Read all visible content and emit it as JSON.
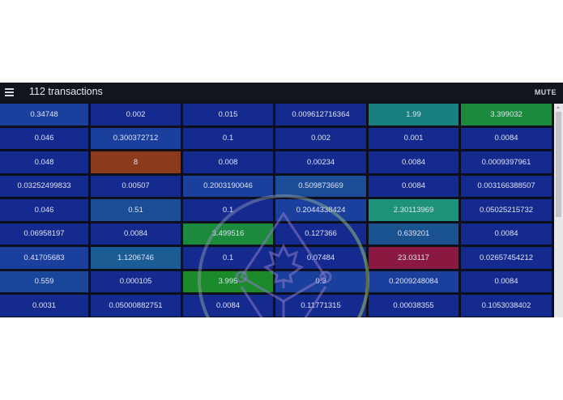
{
  "header": {
    "menu_icon": "hamburger-menu-icon",
    "title": "112 transactions",
    "mute_label": "MUTE"
  },
  "colors": {
    "default_cell": "#152a8e",
    "light_blue": "#1a4a9a",
    "teal": "#17807e",
    "teal_green": "#1e9278",
    "green": "#1b8a3c",
    "orange": "#8c3a1c",
    "crimson": "#8a1840",
    "mid_blue": "#1b5c95"
  },
  "grid": {
    "rows": [
      [
        {
          "v": "0.34748",
          "c": "#1a3f9c"
        },
        {
          "v": "0.002",
          "c": "#152a8e"
        },
        {
          "v": "0.015",
          "c": "#152a8e"
        },
        {
          "v": "0.009612716364",
          "c": "#152a8e"
        },
        {
          "v": "1.99",
          "c": "#17807e"
        },
        {
          "v": "3.399032",
          "c": "#1b8a3c"
        }
      ],
      [
        {
          "v": "0.046",
          "c": "#152a8e"
        },
        {
          "v": "0.300372712",
          "c": "#1a3f9c"
        },
        {
          "v": "0.1",
          "c": "#152a8e"
        },
        {
          "v": "0.002",
          "c": "#152a8e"
        },
        {
          "v": "0.001",
          "c": "#152a8e"
        },
        {
          "v": "0.0084",
          "c": "#152a8e"
        }
      ],
      [
        {
          "v": "0.048",
          "c": "#152a8e"
        },
        {
          "v": "8",
          "c": "#8c3a1c"
        },
        {
          "v": "0.008",
          "c": "#152a8e"
        },
        {
          "v": "0.00234",
          "c": "#152a8e"
        },
        {
          "v": "0.0084",
          "c": "#152a8e"
        },
        {
          "v": "0.0009397961",
          "c": "#152a8e"
        }
      ],
      [
        {
          "v": "0.03252499833",
          "c": "#152a8e"
        },
        {
          "v": "0.00507",
          "c": "#152a8e"
        },
        {
          "v": "0.2003190046",
          "c": "#1a3f9c"
        },
        {
          "v": "0.509873669",
          "c": "#1b4c98"
        },
        {
          "v": "0.0084",
          "c": "#152a8e"
        },
        {
          "v": "0.003166388507",
          "c": "#152a8e"
        }
      ],
      [
        {
          "v": "0.046",
          "c": "#152a8e"
        },
        {
          "v": "0.51",
          "c": "#1b4c98"
        },
        {
          "v": "0.1",
          "c": "#152a8e"
        },
        {
          "v": "0.2044338424",
          "c": "#1a3f9c"
        },
        {
          "v": "2.30113969",
          "c": "#1e9278"
        },
        {
          "v": "0.05025215732",
          "c": "#152a8e"
        }
      ],
      [
        {
          "v": "0.06958197",
          "c": "#152a8e"
        },
        {
          "v": "0.0084",
          "c": "#152a8e"
        },
        {
          "v": "3.499516",
          "c": "#1b8a3c"
        },
        {
          "v": "0.127366",
          "c": "#152a8e"
        },
        {
          "v": "0.639201",
          "c": "#1b5290"
        },
        {
          "v": "0.0084",
          "c": "#152a8e"
        }
      ],
      [
        {
          "v": "0.41705683",
          "c": "#1a3f9c"
        },
        {
          "v": "1.1206746",
          "c": "#1b5c95"
        },
        {
          "v": "0.1",
          "c": "#152a8e"
        },
        {
          "v": "0.07484",
          "c": "#152a8e"
        },
        {
          "v": "23.03117",
          "c": "#8a1840"
        },
        {
          "v": "0.02657454212",
          "c": "#152a8e"
        }
      ],
      [
        {
          "v": "0.559",
          "c": "#1a469a"
        },
        {
          "v": "0.000105",
          "c": "#152a8e"
        },
        {
          "v": "3.995",
          "c": "#1b8a2a"
        },
        {
          "v": "0.3",
          "c": "#1a3f9c"
        },
        {
          "v": "0.2009248084",
          "c": "#1a3f9c"
        },
        {
          "v": "0.0084",
          "c": "#152a8e"
        }
      ],
      [
        {
          "v": "0.0031",
          "c": "#152a8e"
        },
        {
          "v": "0.05000882751",
          "c": "#152a8e"
        },
        {
          "v": "0.0084",
          "c": "#152a8e"
        },
        {
          "v": "0.11771315",
          "c": "#152a8e"
        },
        {
          "v": "0.00038355",
          "c": "#152a8e"
        },
        {
          "v": "0.1053038402",
          "c": "#152a8e"
        }
      ]
    ]
  },
  "watermark": {
    "icon": "ethereum-maple-leaf-logo-icon"
  }
}
